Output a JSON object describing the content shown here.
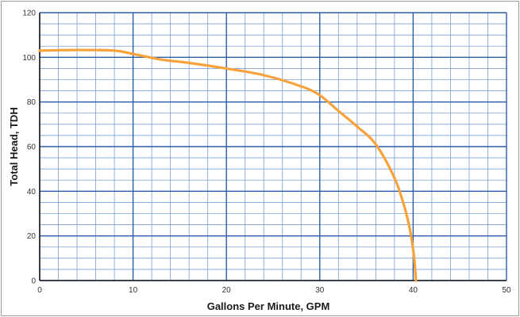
{
  "chart_data": {
    "type": "line",
    "title": "",
    "xlabel": "Gallons Per Minute, GPM",
    "ylabel": "Total Head, TDH",
    "xlim": [
      0,
      50
    ],
    "ylim": [
      0,
      120
    ],
    "x_ticks": [
      0,
      10,
      20,
      30,
      40,
      50
    ],
    "y_ticks": [
      0,
      20,
      40,
      60,
      80,
      100,
      120
    ],
    "x_ticks_label": [
      "0",
      "10",
      "20",
      "30",
      "40",
      "50"
    ],
    "y_ticks_label": [
      "0",
      "20",
      "40",
      "60",
      "80",
      "100",
      "120"
    ],
    "grid": true,
    "series": [
      {
        "color": "#f7a23b",
        "x": [
          0,
          4,
          8,
          10,
          13,
          16,
          20,
          24,
          28,
          30,
          32,
          34,
          36,
          38,
          39,
          39.6,
          40,
          40.2,
          40.3
        ],
        "y": [
          103,
          103.3,
          103,
          101.5,
          99,
          97.5,
          95,
          92,
          87,
          83,
          76,
          69,
          61,
          46,
          34,
          24,
          14,
          6,
          0
        ]
      }
    ],
    "colors": {
      "grid_minor": "#7aa0d2",
      "grid_major": "#2b5da8",
      "axis": "#1f1f1f"
    }
  }
}
